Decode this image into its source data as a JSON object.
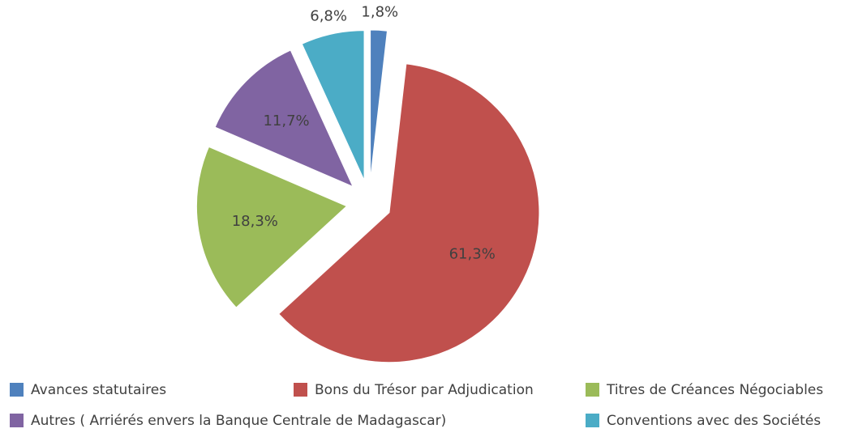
{
  "chart_data": {
    "type": "pie",
    "categories": [
      "Avances statutaires",
      "Bons du Trésor par Adjudication",
      "Titres de Créances Négociables",
      "Autres ( Arriérés envers la Banque Centrale de Madagascar)",
      "Conventions avec des Sociétés"
    ],
    "values": [
      1.8,
      61.3,
      18.3,
      11.7,
      6.8
    ],
    "value_labels": [
      "1,8%",
      "61,3%",
      "18,3%",
      "11,7%",
      "6,8%"
    ],
    "colors": [
      "#4f81bd",
      "#c0504d",
      "#9bbb59",
      "#8064a2",
      "#4bacc6"
    ]
  }
}
